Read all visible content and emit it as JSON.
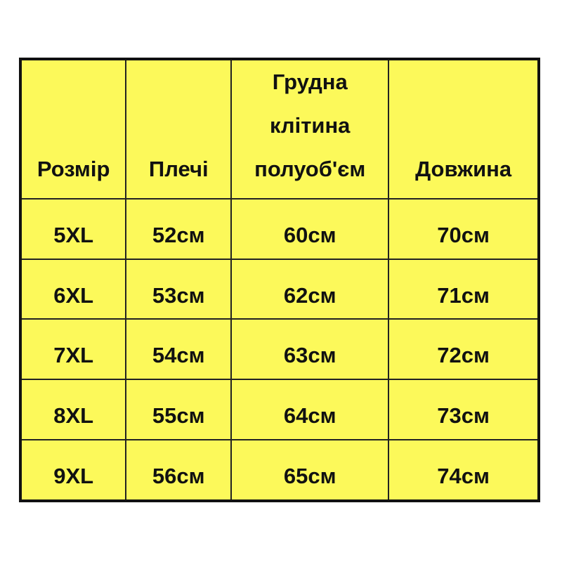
{
  "colors": {
    "background": "#fcf95a",
    "border": "#111111"
  },
  "headers": [
    "Розмір",
    "Плечі",
    "Грудна клітина полуоб'єм",
    "Довжина"
  ],
  "header_lines": {
    "chest": [
      "Грудна",
      "клітина",
      "полуоб'єм"
    ]
  },
  "rows": [
    [
      "5XL",
      "52см",
      "60см",
      "70см"
    ],
    [
      "6XL",
      "53см",
      "62см",
      "71см"
    ],
    [
      "7XL",
      "54см",
      "63см",
      "72см"
    ],
    [
      "8XL",
      "55см",
      "64см",
      "73см"
    ],
    [
      "9XL",
      "56см",
      "65см",
      "74см"
    ]
  ]
}
